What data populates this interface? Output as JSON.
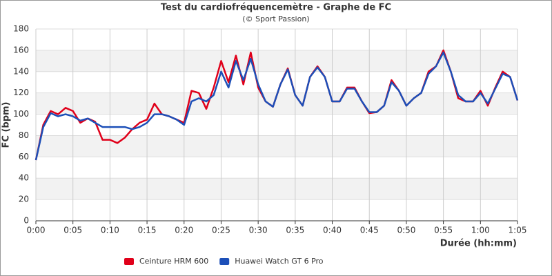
{
  "chart_data": {
    "type": "line",
    "title": "Test du cardiofréquencemètre - Graphe de FC",
    "subtitle": "(© Sport Passion)",
    "x_label": "Durée (hh:mm)",
    "y_label": "FC (bpm)",
    "x": [
      0,
      1,
      2,
      3,
      4,
      5,
      6,
      7,
      8,
      9,
      10,
      11,
      12,
      13,
      14,
      15,
      16,
      17,
      18,
      19,
      20,
      21,
      22,
      23,
      24,
      25,
      26,
      27,
      28,
      29,
      30,
      31,
      32,
      33,
      34,
      35,
      36,
      37,
      38,
      39,
      40,
      41,
      42,
      43,
      44,
      45,
      46,
      47,
      48,
      49,
      50,
      51,
      52,
      53,
      54,
      55,
      56,
      57,
      58,
      59,
      60,
      61,
      62,
      63,
      64,
      65
    ],
    "series": [
      {
        "name": "Ceinture HRM 600",
        "color": "#e0001a",
        "values": [
          57,
          90,
          103,
          100,
          106,
          103,
          92,
          96,
          93,
          76,
          76,
          73,
          78,
          86,
          92,
          95,
          110,
          100,
          98,
          95,
          92,
          122,
          120,
          105,
          125,
          150,
          130,
          155,
          128,
          158,
          125,
          112,
          107,
          128,
          143,
          118,
          108,
          135,
          145,
          135,
          112,
          112,
          125,
          125,
          112,
          101,
          102,
          108,
          132,
          122,
          108,
          115,
          120,
          140,
          145,
          160,
          140,
          115,
          112,
          112,
          122,
          108,
          125,
          140,
          135,
          113
        ]
      },
      {
        "name": "Huawei Watch GT 6 Pro",
        "color": "#1c4fb8",
        "values": [
          57,
          88,
          101,
          98,
          100,
          98,
          94,
          96,
          92,
          88,
          88,
          88,
          88,
          86,
          88,
          92,
          100,
          100,
          98,
          95,
          90,
          112,
          115,
          112,
          118,
          140,
          125,
          150,
          132,
          152,
          128,
          112,
          107,
          128,
          142,
          118,
          108,
          135,
          144,
          135,
          112,
          112,
          124,
          124,
          112,
          102,
          102,
          108,
          130,
          122,
          108,
          115,
          120,
          138,
          145,
          158,
          140,
          118,
          112,
          112,
          120,
          110,
          124,
          138,
          135,
          113
        ]
      }
    ],
    "xlim": [
      0,
      65
    ],
    "xticks": [
      {
        "value": 0,
        "label": "0:00"
      },
      {
        "value": 5,
        "label": "0:05"
      },
      {
        "value": 10,
        "label": "0:10"
      },
      {
        "value": 15,
        "label": "0:15"
      },
      {
        "value": 20,
        "label": "0:20"
      },
      {
        "value": 25,
        "label": "0:25"
      },
      {
        "value": 30,
        "label": "0:30"
      },
      {
        "value": 35,
        "label": "0:35"
      },
      {
        "value": 40,
        "label": "0:40"
      },
      {
        "value": 45,
        "label": "0:45"
      },
      {
        "value": 50,
        "label": "0:50"
      },
      {
        "value": 55,
        "label": "0:55"
      },
      {
        "value": 60,
        "label": "1:00"
      },
      {
        "value": 65,
        "label": "1:05"
      }
    ],
    "ylim": [
      0,
      180
    ],
    "yticks": [
      0,
      20,
      40,
      60,
      80,
      100,
      120,
      140,
      160,
      180
    ],
    "grid": true,
    "bands": true
  }
}
